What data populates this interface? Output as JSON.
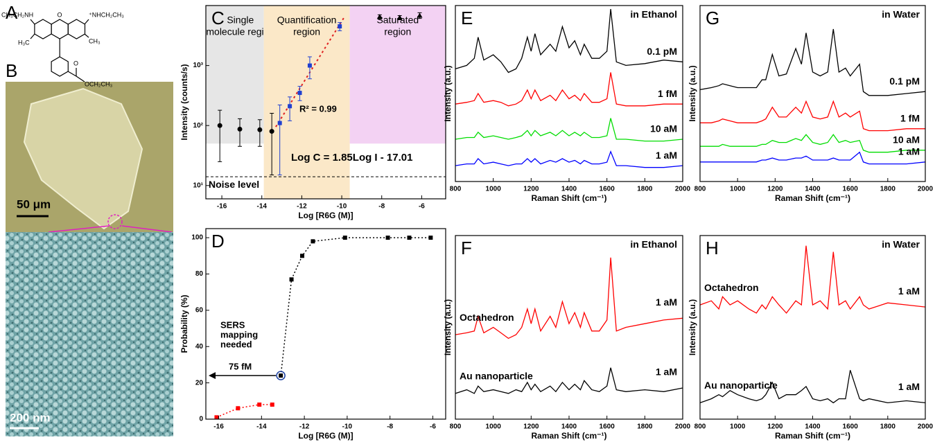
{
  "panel_labels": [
    "A",
    "B"
  ],
  "structure_labels": [
    "CH₃CH₂NH",
    "⁺NHCH₂CH₃",
    "O",
    "H₃C",
    "CH₃",
    "O",
    "OCH₂CH₃"
  ],
  "scale_bars": [
    "50 μm",
    "200 nm"
  ],
  "chart_data": [
    {
      "label": "C",
      "type": "scatter",
      "xlabel": "Log [R6G (M)]",
      "ylabel": "Intensity (counts/s)",
      "log_y": true,
      "xlim": [
        -16.8,
        -4.8
      ],
      "xticks": [
        -16,
        -14,
        -12,
        -10,
        -8,
        -6
      ],
      "ylim": [
        6,
        10000
      ],
      "yticks": [
        {
          "value": 10,
          "label": "10¹"
        },
        {
          "value": 100,
          "label": "10²"
        },
        {
          "value": 1000,
          "label": "10³"
        }
      ],
      "regions": [
        {
          "lines": [
            "Single",
            "molecule region"
          ],
          "x": [
            -16.8,
            -13.9
          ],
          "ylim": [
            50,
            10000
          ],
          "color": "#e6e6e6"
        },
        {
          "lines": [
            "Quantification",
            "region"
          ],
          "x": [
            -13.9,
            -9.6
          ],
          "ylim": [
            6,
            10000
          ],
          "color": "#fbe8c8"
        },
        {
          "lines": [
            "Saturated",
            "region"
          ],
          "x": [
            -9.6,
            -4.8
          ],
          "ylim": [
            50,
            10000
          ],
          "color": "#f3d2f3"
        }
      ],
      "noise_level": {
        "value": 14,
        "label": "Noise level"
      },
      "fit": {
        "x": [
          -13.3,
          -9.9
        ],
        "values": [
          95,
          6200
        ],
        "color": "#e02020"
      },
      "annotations": [
        "R² = 0.99",
        "Log C = 1.85Log I - 17.01"
      ],
      "series": [
        {
          "color": "#000000",
          "marker": "circle",
          "x": [
            -16.1,
            -15.1,
            -14.1,
            -13.5
          ],
          "values": [
            100,
            87,
            85,
            80
          ],
          "low": [
            25,
            45,
            45,
            15
          ],
          "high": [
            180,
            130,
            125,
            160
          ]
        },
        {
          "color": "#1f3fd0",
          "marker": "square",
          "x": [
            -13.1,
            -12.6,
            -12.1,
            -11.6,
            -10.1
          ],
          "values": [
            110,
            210,
            350,
            1000,
            4500
          ],
          "low": [
            15,
            120,
            260,
            600,
            3800
          ],
          "high": [
            220,
            300,
            450,
            1400,
            5200
          ]
        },
        {
          "color": "#000000",
          "marker": "triangle",
          "x": [
            -8.1,
            -7.1,
            -6.1
          ],
          "values": [
            6500,
            6300,
            6800
          ],
          "low": [
            6000,
            5800,
            6100
          ],
          "high": [
            7000,
            6800,
            7600
          ]
        }
      ]
    },
    {
      "label": "D",
      "type": "scatter",
      "xlabel": "Log [R6G (M)]",
      "ylabel": "Probability (%)",
      "xlim": [
        -16.6,
        -5.4
      ],
      "xticks": [
        -16,
        -14,
        -12,
        -10,
        -8,
        -6
      ],
      "ylim": [
        0,
        105
      ],
      "yticks": [
        0,
        20,
        40,
        60,
        80,
        100
      ],
      "annotations": [
        "SERS",
        "mapping",
        "needed",
        "75 fM"
      ],
      "series": [
        {
          "color": "#ff0000",
          "marker": "square",
          "line": true,
          "x": [
            -16.1,
            -15.1,
            -14.1,
            -13.5
          ],
          "values": [
            1,
            6,
            8,
            8
          ]
        },
        {
          "color": "#000000",
          "marker": "square",
          "line": true,
          "x": [
            -13.1,
            -12.6,
            -12.1,
            -11.6,
            -10.1,
            -8.1,
            -7.1,
            -6.1
          ],
          "values": [
            24,
            77,
            90,
            98,
            100,
            100,
            100,
            100
          ]
        }
      ]
    },
    {
      "label": "E",
      "type": "line",
      "title": "in Ethanol",
      "xlabel": "Raman Shift (cm⁻¹)",
      "ylabel": "Intensity (a.u.)",
      "xlim": [
        800,
        2000
      ],
      "xticks": [
        800,
        1000,
        1200,
        1400,
        1600,
        1800,
        2000
      ],
      "ylim": [
        0,
        100
      ],
      "x": [
        800,
        860,
        900,
        920,
        950,
        1000,
        1040,
        1080,
        1120,
        1150,
        1180,
        1200,
        1220,
        1250,
        1300,
        1330,
        1365,
        1400,
        1430,
        1460,
        1480,
        1520,
        1560,
        1600,
        1620,
        1650,
        1700,
        1800,
        1900,
        2000
      ],
      "series": [
        {
          "name": "0.1 pM",
          "color": "#000000",
          "values": [
            64,
            66,
            70,
            82,
            69,
            72,
            68,
            62,
            64,
            70,
            82,
            74,
            84,
            72,
            78,
            74,
            88,
            76,
            80,
            72,
            78,
            70,
            70,
            74,
            98,
            68,
            66,
            67,
            69,
            68
          ]
        },
        {
          "name": "1 fM",
          "color": "#ff0000",
          "values": [
            44,
            45,
            46,
            50,
            45,
            46,
            45,
            43,
            44,
            46,
            52,
            47,
            52,
            46,
            49,
            46,
            52,
            47,
            49,
            46,
            50,
            45,
            45,
            47,
            62,
            44,
            43,
            43,
            44,
            44
          ]
        },
        {
          "name": "10 aM",
          "color": "#00dd00",
          "values": [
            24,
            25,
            25,
            28,
            25,
            26,
            25,
            24,
            25,
            26,
            29,
            26,
            29,
            26,
            28,
            26,
            29,
            26,
            28,
            26,
            28,
            25,
            25,
            26,
            36,
            24,
            24,
            23,
            23,
            24
          ]
        },
        {
          "name": "1 aM",
          "color": "#0000ff",
          "values": [
            9,
            10,
            10,
            13,
            10,
            11,
            10,
            9,
            10,
            10,
            13,
            11,
            13,
            10,
            12,
            11,
            13,
            11,
            12,
            10,
            12,
            10,
            10,
            11,
            17,
            9,
            9,
            8,
            8,
            9
          ]
        }
      ]
    },
    {
      "label": "F",
      "type": "line",
      "title": "in Ethanol",
      "xlabel": "Raman Shift (cm⁻¹)",
      "ylabel": "Intensity (a.u.)",
      "xlim": [
        800,
        2000
      ],
      "xticks": [
        800,
        1000,
        1200,
        1400,
        1600,
        1800,
        2000
      ],
      "ylim": [
        0,
        100
      ],
      "x": [
        800,
        860,
        900,
        920,
        950,
        1000,
        1040,
        1080,
        1120,
        1150,
        1180,
        1200,
        1220,
        1250,
        1300,
        1330,
        1365,
        1400,
        1430,
        1460,
        1480,
        1520,
        1560,
        1600,
        1620,
        1650,
        1700,
        1800,
        1900,
        2000
      ],
      "series": [
        {
          "name": "Octahedron",
          "tag": "1 aM",
          "color": "#ff0000",
          "values": [
            46,
            47,
            48,
            56,
            47,
            50,
            47,
            44,
            46,
            50,
            60,
            52,
            60,
            48,
            56,
            50,
            64,
            52,
            58,
            50,
            58,
            48,
            48,
            54,
            88,
            48,
            50,
            52,
            54,
            55
          ]
        },
        {
          "name": "Au nanoparticle",
          "tag": "1 aM",
          "color": "#000000",
          "values": [
            14,
            16,
            14,
            18,
            15,
            16,
            15,
            14,
            16,
            15,
            20,
            16,
            19,
            15,
            18,
            15,
            20,
            16,
            19,
            16,
            21,
            16,
            15,
            18,
            28,
            16,
            15,
            16,
            15,
            17
          ]
        }
      ]
    },
    {
      "label": "G",
      "type": "line",
      "title": "in Water",
      "xlabel": "Raman Shift (cm⁻¹)",
      "ylabel": "Intensity (a.u.)",
      "xlim": [
        800,
        2000
      ],
      "xticks": [
        800,
        1000,
        1200,
        1400,
        1600,
        1800,
        2000
      ],
      "ylim": [
        20,
        110
      ],
      "x": [
        800,
        860,
        900,
        920,
        960,
        1000,
        1060,
        1100,
        1130,
        1150,
        1185,
        1220,
        1260,
        1310,
        1340,
        1365,
        1400,
        1440,
        1480,
        1510,
        1540,
        1575,
        1600,
        1650,
        1670,
        1700,
        1800,
        1900,
        2000
      ],
      "series": [
        {
          "name": "0.1 pM",
          "color": "#000000",
          "values": [
            67,
            68,
            69,
            70,
            69,
            68,
            68,
            68,
            72,
            72,
            85,
            74,
            75,
            88,
            80,
            96,
            76,
            74,
            76,
            98,
            76,
            78,
            74,
            80,
            66,
            64,
            64,
            65,
            66
          ]
        },
        {
          "name": "1 fM",
          "color": "#ff0000",
          "values": [
            50,
            50,
            51,
            52,
            51,
            50,
            50,
            50,
            51,
            52,
            58,
            53,
            53,
            58,
            55,
            61,
            53,
            52,
            53,
            61,
            53,
            55,
            53,
            56,
            47,
            46,
            46,
            47,
            47
          ]
        },
        {
          "name": "10 aM",
          "color": "#00dd00",
          "values": [
            38,
            38,
            38,
            39,
            38,
            38,
            38,
            38,
            39,
            39,
            41,
            40,
            40,
            42,
            41,
            44,
            40,
            39,
            40,
            44,
            40,
            41,
            40,
            41,
            36,
            35,
            35,
            36,
            36
          ]
        },
        {
          "name": "1 aM",
          "color": "#0000ff",
          "values": [
            30,
            30,
            30,
            30,
            30,
            30,
            30,
            30,
            31,
            31,
            32,
            31,
            31,
            32,
            32,
            33,
            31,
            31,
            31,
            32,
            31,
            31,
            31,
            35,
            30,
            29,
            29,
            29,
            30
          ]
        }
      ]
    },
    {
      "label": "H",
      "type": "line",
      "title": "in Water",
      "xlabel": "Raman Shift (cm⁻¹)",
      "ylabel": "Intensity (a.u.)",
      "xlim": [
        800,
        2000
      ],
      "xticks": [
        800,
        1000,
        1200,
        1400,
        1600,
        1800,
        2000
      ],
      "ylim": [
        10,
        100
      ],
      "x": [
        800,
        860,
        900,
        920,
        960,
        1000,
        1060,
        1100,
        1130,
        1150,
        1185,
        1220,
        1260,
        1310,
        1340,
        1365,
        1400,
        1440,
        1480,
        1510,
        1540,
        1575,
        1600,
        1650,
        1670,
        1700,
        1800,
        1900,
        2000
      ],
      "series": [
        {
          "name": "Octahedron",
          "tag": "1 aM",
          "color": "#ff0000",
          "values": [
            66,
            68,
            64,
            70,
            66,
            68,
            64,
            62,
            66,
            64,
            70,
            66,
            62,
            68,
            66,
            95,
            66,
            68,
            64,
            92,
            66,
            68,
            64,
            70,
            66,
            64,
            67,
            66,
            65
          ]
        },
        {
          "name": "Au nanoparticle",
          "tag": "1 aM",
          "color": "#000000",
          "values": [
            18,
            20,
            22,
            21,
            24,
            22,
            20,
            19,
            20,
            22,
            28,
            20,
            22,
            22,
            24,
            26,
            20,
            19,
            20,
            18,
            20,
            20,
            34,
            20,
            19,
            20,
            18,
            19,
            18
          ]
        }
      ]
    }
  ]
}
